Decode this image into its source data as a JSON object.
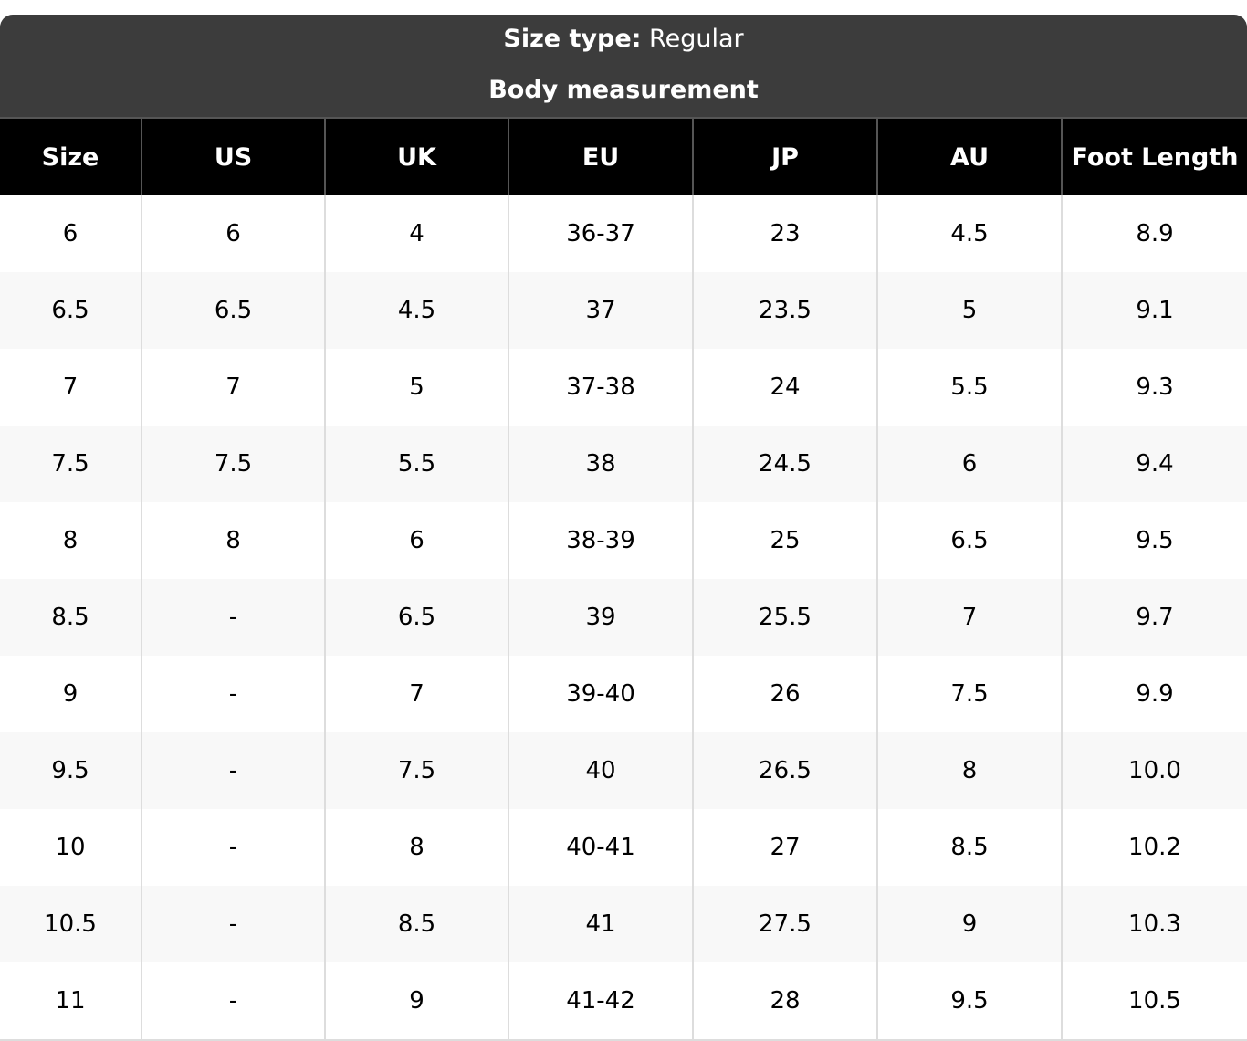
{
  "header": {
    "label": "Size type:",
    "value": "Regular",
    "subtitle": "Body measurement"
  },
  "table": {
    "columns": [
      "Size",
      "US",
      "UK",
      "EU",
      "JP",
      "AU",
      "Foot Length"
    ],
    "rows": [
      [
        "6",
        "6",
        "4",
        "36-37",
        "23",
        "4.5",
        "8.9"
      ],
      [
        "6.5",
        "6.5",
        "4.5",
        "37",
        "23.5",
        "5",
        "9.1"
      ],
      [
        "7",
        "7",
        "5",
        "37-38",
        "24",
        "5.5",
        "9.3"
      ],
      [
        "7.5",
        "7.5",
        "5.5",
        "38",
        "24.5",
        "6",
        "9.4"
      ],
      [
        "8",
        "8",
        "6",
        "38-39",
        "25",
        "6.5",
        "9.5"
      ],
      [
        "8.5",
        "-",
        "6.5",
        "39",
        "25.5",
        "7",
        "9.7"
      ],
      [
        "9",
        "-",
        "7",
        "39-40",
        "26",
        "7.5",
        "9.9"
      ],
      [
        "9.5",
        "-",
        "7.5",
        "40",
        "26.5",
        "8",
        "10.0"
      ],
      [
        "10",
        "-",
        "8",
        "40-41",
        "27",
        "8.5",
        "10.2"
      ],
      [
        "10.5",
        "-",
        "8.5",
        "41",
        "27.5",
        "9",
        "10.3"
      ],
      [
        "11",
        "-",
        "9",
        "41-42",
        "28",
        "9.5",
        "10.5"
      ]
    ]
  }
}
